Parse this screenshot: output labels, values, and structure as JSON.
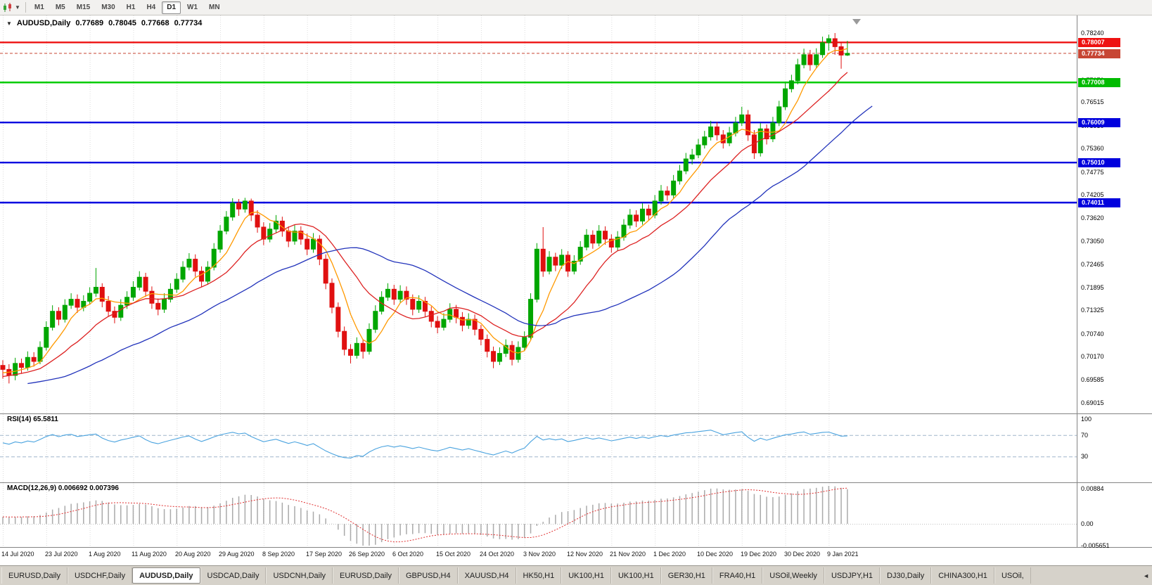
{
  "toolbar": {
    "timeframes": [
      "M1",
      "M5",
      "M15",
      "M30",
      "H1",
      "H4",
      "D1",
      "W1",
      "MN"
    ],
    "active": "D1"
  },
  "header": {
    "collapse_icon": "▼",
    "symbol": "AUDUSD,Daily",
    "open": "0.77689",
    "high": "0.78045",
    "low": "0.77668",
    "close": "0.77734"
  },
  "panes": {
    "rsi_label": "RSI(14) 65.5811",
    "macd_label": "MACD(12,26,9) 0.006692 0.007396"
  },
  "price_axis": {
    "ticks": [
      "0.78240",
      "0.77655",
      "0.77070",
      "0.76515",
      "0.75930",
      "0.75360",
      "0.74775",
      "0.74205",
      "0.73620",
      "0.73050",
      "0.72465",
      "0.71895",
      "0.71325",
      "0.70740",
      "0.70170",
      "0.69585",
      "0.69015"
    ],
    "badges": [
      {
        "label": "0.78007",
        "price": 0.78007,
        "color": "#EE1111"
      },
      {
        "label": "0.77734",
        "price": 0.77734,
        "color": "#C74634"
      },
      {
        "label": "0.77008",
        "price": 0.77008,
        "color": "#00BB00"
      },
      {
        "label": "0.76009",
        "price": 0.76009,
        "color": "#0000DD"
      },
      {
        "label": "0.75010",
        "price": 0.7501,
        "color": "#0000DD"
      },
      {
        "label": "0.74011",
        "price": 0.74011,
        "color": "#0000DD"
      }
    ]
  },
  "rsi_axis": [
    "100",
    "70",
    "30"
  ],
  "macd_axis": [
    "0.00884",
    "0.00",
    "-0.005651"
  ],
  "tabs": {
    "items": [
      "EURUSD,Daily",
      "USDCHF,Daily",
      "AUDUSD,Daily",
      "USDCAD,Daily",
      "USDCNH,Daily",
      "EURUSD,Daily",
      "GBPUSD,H4",
      "XAUUSD,H4",
      "HK50,H1",
      "UK100,H1",
      "UK100,H1",
      "GER30,H1",
      "FRA40,H1",
      "USOil,Weekly",
      "USDJPY,H1",
      "DJ30,Daily",
      "CHINA300,H1",
      "USOil,"
    ],
    "active_index": 2,
    "scroll_icon": "◄"
  },
  "chart_data": {
    "type": "candlestick",
    "title": "AUDUSD,Daily",
    "x_labels": [
      "14 Jul 2020",
      "23 Jul 2020",
      "1 Aug 2020",
      "11 Aug 2020",
      "20 Aug 2020",
      "29 Aug 2020",
      "8 Sep 2020",
      "17 Sep 2020",
      "26 Sep 2020",
      "6 Oct 2020",
      "15 Oct 2020",
      "24 Oct 2020",
      "3 Nov 2020",
      "12 Nov 2020",
      "21 Nov 2020",
      "1 Dec 2020",
      "10 Dec 2020",
      "19 Dec 2020",
      "30 Dec 2020",
      "9 Jan 2021"
    ],
    "x_label_step": 7,
    "price_range": {
      "top_tick": 0.7824,
      "bottom_tick": 0.69015
    },
    "bull_color": "#00A600",
    "bear_color": "#E01010",
    "candles": [
      [
        0.6995,
        0.7008,
        0.6962,
        0.6985
      ],
      [
        0.6985,
        0.6998,
        0.695,
        0.697
      ],
      [
        0.697,
        0.7014,
        0.6958,
        0.7
      ],
      [
        0.7,
        0.7012,
        0.6974,
        0.699
      ],
      [
        0.699,
        0.703,
        0.6982,
        0.7015
      ],
      [
        0.7015,
        0.7028,
        0.6992,
        0.7005
      ],
      [
        0.7005,
        0.7055,
        0.6998,
        0.704
      ],
      [
        0.704,
        0.7105,
        0.7032,
        0.709
      ],
      [
        0.709,
        0.7145,
        0.7082,
        0.713
      ],
      [
        0.713,
        0.714,
        0.7095,
        0.711
      ],
      [
        0.711,
        0.716,
        0.7102,
        0.7145
      ],
      [
        0.7145,
        0.7175,
        0.7136,
        0.716
      ],
      [
        0.716,
        0.7172,
        0.7126,
        0.714
      ],
      [
        0.714,
        0.717,
        0.713,
        0.7155
      ],
      [
        0.7155,
        0.719,
        0.7146,
        0.7175
      ],
      [
        0.7175,
        0.7238,
        0.7166,
        0.719
      ],
      [
        0.719,
        0.72,
        0.714,
        0.7155
      ],
      [
        0.7155,
        0.7168,
        0.7116,
        0.713
      ],
      [
        0.713,
        0.7142,
        0.71,
        0.7115
      ],
      [
        0.7115,
        0.716,
        0.7106,
        0.7145
      ],
      [
        0.7145,
        0.718,
        0.7136,
        0.7165
      ],
      [
        0.7165,
        0.7205,
        0.7156,
        0.719
      ],
      [
        0.719,
        0.723,
        0.7182,
        0.7215
      ],
      [
        0.7215,
        0.7226,
        0.7166,
        0.718
      ],
      [
        0.718,
        0.7192,
        0.7136,
        0.715
      ],
      [
        0.715,
        0.7162,
        0.712,
        0.7135
      ],
      [
        0.7135,
        0.7175,
        0.7126,
        0.716
      ],
      [
        0.716,
        0.72,
        0.7152,
        0.7185
      ],
      [
        0.7185,
        0.7225,
        0.7176,
        0.721
      ],
      [
        0.721,
        0.7255,
        0.7202,
        0.724
      ],
      [
        0.724,
        0.7275,
        0.7232,
        0.726
      ],
      [
        0.726,
        0.7272,
        0.7216,
        0.723
      ],
      [
        0.723,
        0.7242,
        0.719,
        0.7205
      ],
      [
        0.7205,
        0.7255,
        0.7196,
        0.724
      ],
      [
        0.724,
        0.73,
        0.7232,
        0.7285
      ],
      [
        0.7285,
        0.7345,
        0.7276,
        0.733
      ],
      [
        0.733,
        0.738,
        0.7322,
        0.7365
      ],
      [
        0.7365,
        0.7412,
        0.7356,
        0.74
      ],
      [
        0.74,
        0.741,
        0.7368,
        0.7385
      ],
      [
        0.7385,
        0.7413,
        0.7376,
        0.7405
      ],
      [
        0.7405,
        0.7411,
        0.7355,
        0.737
      ],
      [
        0.737,
        0.7382,
        0.7326,
        0.734
      ],
      [
        0.734,
        0.7352,
        0.7295,
        0.731
      ],
      [
        0.731,
        0.735,
        0.7302,
        0.7335
      ],
      [
        0.7335,
        0.737,
        0.7326,
        0.7355
      ],
      [
        0.7355,
        0.7366,
        0.7316,
        0.733
      ],
      [
        0.733,
        0.7342,
        0.729,
        0.7305
      ],
      [
        0.7305,
        0.7345,
        0.7296,
        0.733
      ],
      [
        0.733,
        0.7342,
        0.7296,
        0.731
      ],
      [
        0.731,
        0.7324,
        0.727,
        0.7285
      ],
      [
        0.7285,
        0.7325,
        0.7276,
        0.731
      ],
      [
        0.731,
        0.732,
        0.7245,
        0.726
      ],
      [
        0.726,
        0.7272,
        0.7185,
        0.72
      ],
      [
        0.72,
        0.7212,
        0.7125,
        0.714
      ],
      [
        0.714,
        0.7152,
        0.7065,
        0.708
      ],
      [
        0.708,
        0.7092,
        0.702,
        0.7035
      ],
      [
        0.7035,
        0.7048,
        0.7,
        0.702
      ],
      [
        0.702,
        0.7065,
        0.7012,
        0.705
      ],
      [
        0.705,
        0.706,
        0.7012,
        0.703
      ],
      [
        0.703,
        0.71,
        0.7022,
        0.7085
      ],
      [
        0.7085,
        0.7145,
        0.7076,
        0.713
      ],
      [
        0.713,
        0.718,
        0.7122,
        0.7165
      ],
      [
        0.7165,
        0.72,
        0.7156,
        0.7185
      ],
      [
        0.7185,
        0.7196,
        0.7146,
        0.716
      ],
      [
        0.716,
        0.7195,
        0.7152,
        0.718
      ],
      [
        0.718,
        0.7192,
        0.7146,
        0.716
      ],
      [
        0.716,
        0.7172,
        0.712,
        0.7135
      ],
      [
        0.7135,
        0.717,
        0.7126,
        0.7155
      ],
      [
        0.7155,
        0.7166,
        0.7116,
        0.713
      ],
      [
        0.713,
        0.7142,
        0.709,
        0.7105
      ],
      [
        0.7105,
        0.7118,
        0.7075,
        0.709
      ],
      [
        0.709,
        0.7125,
        0.7082,
        0.711
      ],
      [
        0.711,
        0.715,
        0.7102,
        0.7135
      ],
      [
        0.7135,
        0.7146,
        0.71,
        0.7115
      ],
      [
        0.7115,
        0.7128,
        0.708,
        0.7095
      ],
      [
        0.7095,
        0.7125,
        0.7086,
        0.711
      ],
      [
        0.711,
        0.7122,
        0.707,
        0.7085
      ],
      [
        0.7085,
        0.7096,
        0.7045,
        0.706
      ],
      [
        0.706,
        0.7072,
        0.7015,
        0.703
      ],
      [
        0.703,
        0.7042,
        0.6988,
        0.7005
      ],
      [
        0.7005,
        0.704,
        0.6996,
        0.7025
      ],
      [
        0.7025,
        0.706,
        0.7016,
        0.7045
      ],
      [
        0.7045,
        0.7056,
        0.6995,
        0.701
      ],
      [
        0.701,
        0.7055,
        0.7002,
        0.704
      ],
      [
        0.704,
        0.708,
        0.7032,
        0.7065
      ],
      [
        0.7065,
        0.7175,
        0.7058,
        0.716
      ],
      [
        0.716,
        0.73,
        0.7152,
        0.7285
      ],
      [
        0.7285,
        0.734,
        0.7216,
        0.723
      ],
      [
        0.723,
        0.728,
        0.7222,
        0.7265
      ],
      [
        0.7265,
        0.7276,
        0.723,
        0.7245
      ],
      [
        0.7245,
        0.7285,
        0.7236,
        0.727
      ],
      [
        0.727,
        0.728,
        0.7216,
        0.723
      ],
      [
        0.723,
        0.727,
        0.7222,
        0.7255
      ],
      [
        0.7255,
        0.7305,
        0.7246,
        0.729
      ],
      [
        0.729,
        0.7335,
        0.7282,
        0.732
      ],
      [
        0.732,
        0.7332,
        0.7286,
        0.73
      ],
      [
        0.73,
        0.7345,
        0.7292,
        0.733
      ],
      [
        0.733,
        0.7342,
        0.7296,
        0.731
      ],
      [
        0.731,
        0.7322,
        0.7276,
        0.729
      ],
      [
        0.729,
        0.733,
        0.7282,
        0.7315
      ],
      [
        0.7315,
        0.736,
        0.7306,
        0.7345
      ],
      [
        0.7345,
        0.7385,
        0.7336,
        0.737
      ],
      [
        0.737,
        0.7382,
        0.734,
        0.7355
      ],
      [
        0.7355,
        0.74,
        0.7346,
        0.7385
      ],
      [
        0.7385,
        0.7396,
        0.7356,
        0.737
      ],
      [
        0.737,
        0.742,
        0.7362,
        0.7405
      ],
      [
        0.7405,
        0.7445,
        0.7396,
        0.743
      ],
      [
        0.743,
        0.7442,
        0.7406,
        0.742
      ],
      [
        0.742,
        0.747,
        0.7412,
        0.7455
      ],
      [
        0.7455,
        0.7495,
        0.7446,
        0.748
      ],
      [
        0.748,
        0.7525,
        0.7472,
        0.751
      ],
      [
        0.751,
        0.7535,
        0.7496,
        0.752
      ],
      [
        0.752,
        0.756,
        0.7512,
        0.7545
      ],
      [
        0.7545,
        0.758,
        0.7536,
        0.7565
      ],
      [
        0.7565,
        0.7605,
        0.7556,
        0.759
      ],
      [
        0.759,
        0.7602,
        0.7556,
        0.757
      ],
      [
        0.757,
        0.7582,
        0.7536,
        0.755
      ],
      [
        0.755,
        0.759,
        0.7542,
        0.7575
      ],
      [
        0.7575,
        0.7615,
        0.7566,
        0.76
      ],
      [
        0.76,
        0.764,
        0.7592,
        0.762
      ],
      [
        0.762,
        0.7632,
        0.7555,
        0.757
      ],
      [
        0.757,
        0.7582,
        0.751,
        0.7525
      ],
      [
        0.7525,
        0.76,
        0.7516,
        0.7585
      ],
      [
        0.7585,
        0.7596,
        0.7546,
        0.756
      ],
      [
        0.756,
        0.7615,
        0.7552,
        0.76
      ],
      [
        0.76,
        0.7655,
        0.7592,
        0.764
      ],
      [
        0.764,
        0.77,
        0.7632,
        0.7685
      ],
      [
        0.7685,
        0.772,
        0.7676,
        0.7705
      ],
      [
        0.7705,
        0.776,
        0.7696,
        0.7745
      ],
      [
        0.7745,
        0.7785,
        0.7736,
        0.777
      ],
      [
        0.777,
        0.7782,
        0.773,
        0.7745
      ],
      [
        0.7745,
        0.7786,
        0.7736,
        0.777
      ],
      [
        0.777,
        0.7815,
        0.7762,
        0.78
      ],
      [
        0.78,
        0.782,
        0.778,
        0.781
      ],
      [
        0.781,
        0.7824,
        0.777,
        0.779
      ],
      [
        0.779,
        0.7802,
        0.7735,
        0.7769
      ],
      [
        0.7769,
        0.78045,
        0.77668,
        0.77734
      ]
    ],
    "hlines": [
      {
        "price": 0.78007,
        "color": "#EE1111"
      },
      {
        "price": 0.77008,
        "color": "#00CC00"
      },
      {
        "price": 0.76009,
        "color": "#0000E0"
      },
      {
        "price": 0.7501,
        "color": "#0000E0"
      },
      {
        "price": 0.74011,
        "color": "#0000E0"
      }
    ],
    "last_price": {
      "price": 0.77734,
      "color": "#C74634"
    },
    "moving_averages": [
      {
        "period": 6,
        "color": "#FF9900",
        "shift": 0
      },
      {
        "period": 14,
        "color": "#DD2222",
        "shift": 0
      },
      {
        "period": 28,
        "color": "#2233BB",
        "shift": 4
      }
    ],
    "rsi": {
      "period": 14,
      "levels": [
        70,
        30
      ],
      "color": "#4AA3DF",
      "current": 65.5811
    },
    "macd": {
      "fast": 12,
      "slow": 26,
      "signal_period": 9,
      "hist_color": "#AAAAAA",
      "signal_color": "#E03030",
      "main": 0.006692,
      "signal": 0.007396
    },
    "prehistory": {
      "points": 60,
      "start": 0.683,
      "noise": 0.0012
    }
  }
}
